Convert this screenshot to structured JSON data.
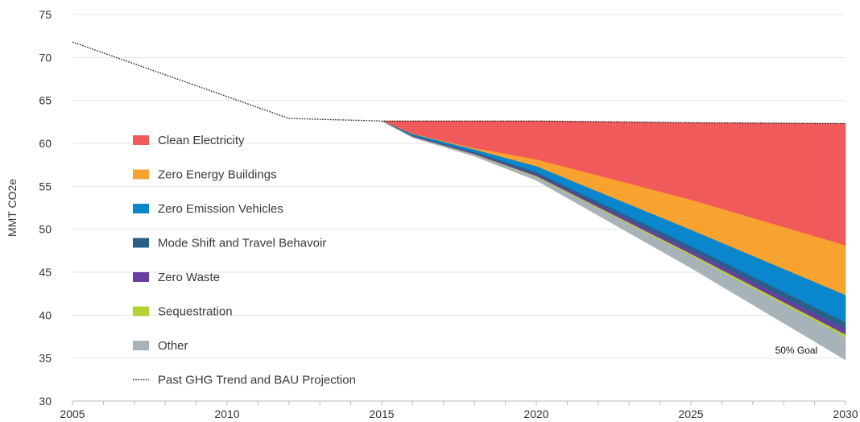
{
  "chart_data": {
    "type": "area",
    "title": "",
    "xlabel": "",
    "ylabel": "MMT CO2e",
    "xlim": [
      2005,
      2030
    ],
    "ylim": [
      30,
      75
    ],
    "x_ticks": [
      2005,
      2010,
      2015,
      2020,
      2025,
      2030
    ],
    "y_ticks": [
      30,
      35,
      40,
      45,
      50,
      55,
      60,
      65,
      70,
      75
    ],
    "grid": "horizontal",
    "legend_position": "left",
    "trend_line": {
      "name": "Past GHG Trend and BAU Projection",
      "color": "#222222",
      "x": [
        2005,
        2012,
        2015,
        2020,
        2025,
        2030
      ],
      "y": [
        71.8,
        62.9,
        62.6,
        62.6,
        62.4,
        62.3
      ]
    },
    "area_x": [
      2015,
      2016,
      2018,
      2020,
      2025,
      2030
    ],
    "series": [
      {
        "name": "Clean Electricity",
        "color": "#f05a5a",
        "values": [
          0.0,
          1.5,
          3.2,
          4.5,
          9.0,
          14.2
        ]
      },
      {
        "name": "Zero Energy Buildings",
        "color": "#f8a22f",
        "values": [
          0.0,
          0.05,
          0.15,
          0.8,
          3.5,
          5.8
        ]
      },
      {
        "name": "Zero Emission Vehicles",
        "color": "#0a86cc",
        "values": [
          0.0,
          0.15,
          0.3,
          0.7,
          1.9,
          3.2
        ]
      },
      {
        "name": "Mode Shift and Travel Behavoir",
        "color": "#2a5f8a",
        "values": [
          0.0,
          0.1,
          0.15,
          0.25,
          0.5,
          0.8
        ]
      },
      {
        "name": "Zero Waste",
        "color": "#6a3ea1",
        "values": [
          0.0,
          0.05,
          0.1,
          0.2,
          0.4,
          0.6
        ]
      },
      {
        "name": "Sequestration",
        "color": "#b3d335",
        "values": [
          0.0,
          0.03,
          0.05,
          0.1,
          0.2,
          0.3
        ]
      },
      {
        "name": "Other",
        "color": "#a7b3b9",
        "values": [
          0.0,
          0.05,
          0.15,
          0.35,
          1.4,
          2.6
        ]
      }
    ],
    "annotations": [
      {
        "text": "50% Goal",
        "x": 2029.2,
        "y": 35.9
      }
    ]
  }
}
